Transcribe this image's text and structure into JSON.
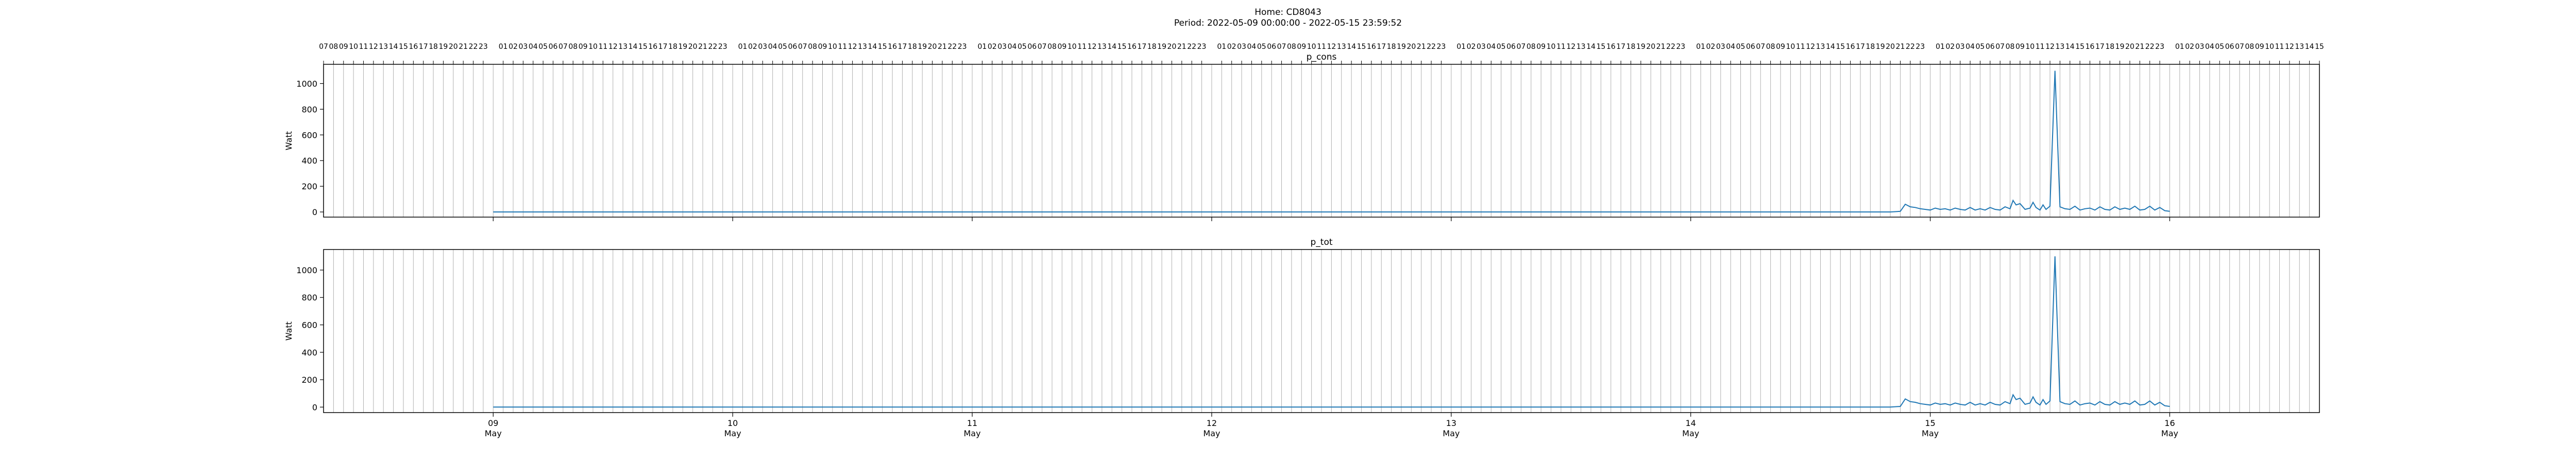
{
  "figure": {
    "title_line1": "Home: CD8043",
    "title_line2": "Period: 2022-05-09 00:00:00 - 2022-05-15 23:59:52"
  },
  "colors": {
    "series": "#1f77b4",
    "grid": "#b0b0b0",
    "axes": "#000000"
  },
  "chart_data": [
    {
      "type": "line",
      "title": "p_cons",
      "ylabel": "Watt",
      "xlabel": "",
      "ylim": [
        -40,
        1150
      ],
      "yticks": [
        0,
        200,
        400,
        600,
        800,
        1000
      ],
      "grid": "vertical hourly lines",
      "x_range_hours": [
        -17,
        183
      ],
      "hour_tick_labels_top": true,
      "day_ticks": [
        {
          "hour": 0,
          "label": "09\nMay"
        },
        {
          "hour": 24,
          "label": "10\nMay"
        },
        {
          "hour": 48,
          "label": "11\nMay"
        },
        {
          "hour": 72,
          "label": "12\nMay"
        },
        {
          "hour": 96,
          "label": "13\nMay"
        },
        {
          "hour": 120,
          "label": "14\nMay"
        },
        {
          "hour": 144,
          "label": "15\nMay"
        },
        {
          "hour": 168,
          "label": "16\nMay"
        }
      ],
      "x_hours": [
        0,
        140,
        141,
        141.5,
        142,
        142.5,
        143,
        143.5,
        144,
        144.5,
        145,
        145.5,
        146,
        146.5,
        147,
        147.5,
        148,
        148.5,
        149,
        149.5,
        150,
        150.5,
        151,
        151.5,
        152,
        152.3,
        152.6,
        153,
        153.5,
        154,
        154.3,
        154.6,
        155,
        155.3,
        155.6,
        156,
        156.5,
        157,
        157.5,
        158,
        158.5,
        159,
        159.5,
        160,
        160.5,
        161,
        161.5,
        162,
        162.5,
        163,
        163.5,
        164,
        164.5,
        165,
        165.5,
        166,
        166.5,
        167,
        167.5,
        168
      ],
      "y_watt": [
        0,
        0,
        5,
        60,
        40,
        35,
        25,
        20,
        15,
        30,
        20,
        25,
        15,
        30,
        20,
        15,
        35,
        15,
        25,
        15,
        35,
        20,
        15,
        40,
        25,
        90,
        55,
        65,
        20,
        30,
        75,
        35,
        15,
        55,
        20,
        45,
        1100,
        40,
        25,
        20,
        45,
        15,
        25,
        30,
        15,
        40,
        20,
        15,
        40,
        20,
        30,
        20,
        45,
        15,
        20,
        45,
        15,
        35,
        10,
        5
      ]
    },
    {
      "type": "line",
      "title": "p_tot",
      "ylabel": "Watt",
      "xlabel": "",
      "ylim": [
        -40,
        1150
      ],
      "yticks": [
        0,
        200,
        400,
        600,
        800,
        1000
      ],
      "grid": "vertical hourly lines",
      "x_range_hours": [
        -17,
        183
      ],
      "hour_tick_labels_top": false,
      "day_ticks": [
        {
          "hour": 0,
          "label": "09\nMay"
        },
        {
          "hour": 24,
          "label": "10\nMay"
        },
        {
          "hour": 48,
          "label": "11\nMay"
        },
        {
          "hour": 72,
          "label": "12\nMay"
        },
        {
          "hour": 96,
          "label": "13\nMay"
        },
        {
          "hour": 120,
          "label": "14\nMay"
        },
        {
          "hour": 144,
          "label": "15\nMay"
        },
        {
          "hour": 168,
          "label": "16\nMay"
        }
      ],
      "x_hours": [
        0,
        140,
        141,
        141.5,
        142,
        142.5,
        143,
        143.5,
        144,
        144.5,
        145,
        145.5,
        146,
        146.5,
        147,
        147.5,
        148,
        148.5,
        149,
        149.5,
        150,
        150.5,
        151,
        151.5,
        152,
        152.3,
        152.6,
        153,
        153.5,
        154,
        154.3,
        154.6,
        155,
        155.3,
        155.6,
        156,
        156.5,
        157,
        157.5,
        158,
        158.5,
        159,
        159.5,
        160,
        160.5,
        161,
        161.5,
        162,
        162.5,
        163,
        163.5,
        164,
        164.5,
        165,
        165.5,
        166,
        166.5,
        167,
        167.5,
        168
      ],
      "y_watt": [
        0,
        0,
        5,
        60,
        40,
        35,
        25,
        20,
        15,
        30,
        20,
        25,
        15,
        30,
        20,
        15,
        35,
        15,
        25,
        15,
        35,
        20,
        15,
        40,
        25,
        90,
        55,
        65,
        20,
        30,
        75,
        35,
        15,
        55,
        20,
        45,
        1100,
        40,
        25,
        20,
        45,
        15,
        25,
        30,
        15,
        40,
        20,
        15,
        40,
        20,
        30,
        20,
        45,
        15,
        20,
        45,
        15,
        35,
        10,
        5
      ]
    }
  ]
}
